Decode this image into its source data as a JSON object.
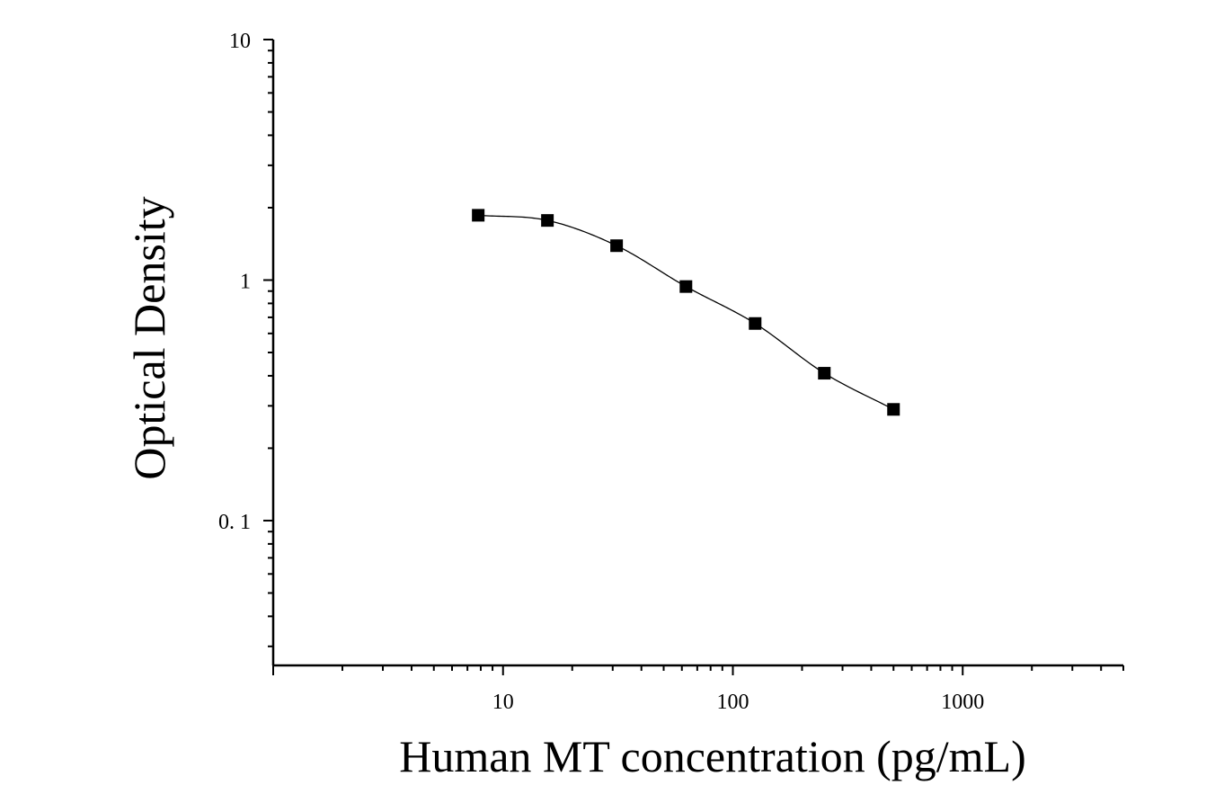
{
  "chart_data": {
    "type": "scatter",
    "title": "",
    "xlabel": "Human MT concentration (pg/mL)",
    "ylabel": "Optical Density",
    "x_scale": "log",
    "y_scale": "log",
    "xlim": [
      1,
      5000
    ],
    "ylim": [
      0.025,
      10
    ],
    "x_ticks": [
      {
        "value": 10,
        "label": "10"
      },
      {
        "value": 100,
        "label": "100"
      },
      {
        "value": 1000,
        "label": "1000"
      }
    ],
    "y_ticks": [
      {
        "value": 10,
        "label": "10"
      },
      {
        "value": 1,
        "label": "1"
      },
      {
        "value": 0.1,
        "label": "0. 1"
      }
    ],
    "grid": false,
    "legend": "none",
    "series": [
      {
        "x": [
          7.8,
          15.6,
          31.2,
          62.5,
          125,
          250,
          500
        ],
        "y": [
          1.86,
          1.77,
          1.39,
          0.94,
          0.66,
          0.41,
          0.29
        ],
        "marker": "square",
        "fit_curve": true
      }
    ],
    "colors": {
      "marks": "#000000",
      "background": "#ffffff"
    }
  }
}
